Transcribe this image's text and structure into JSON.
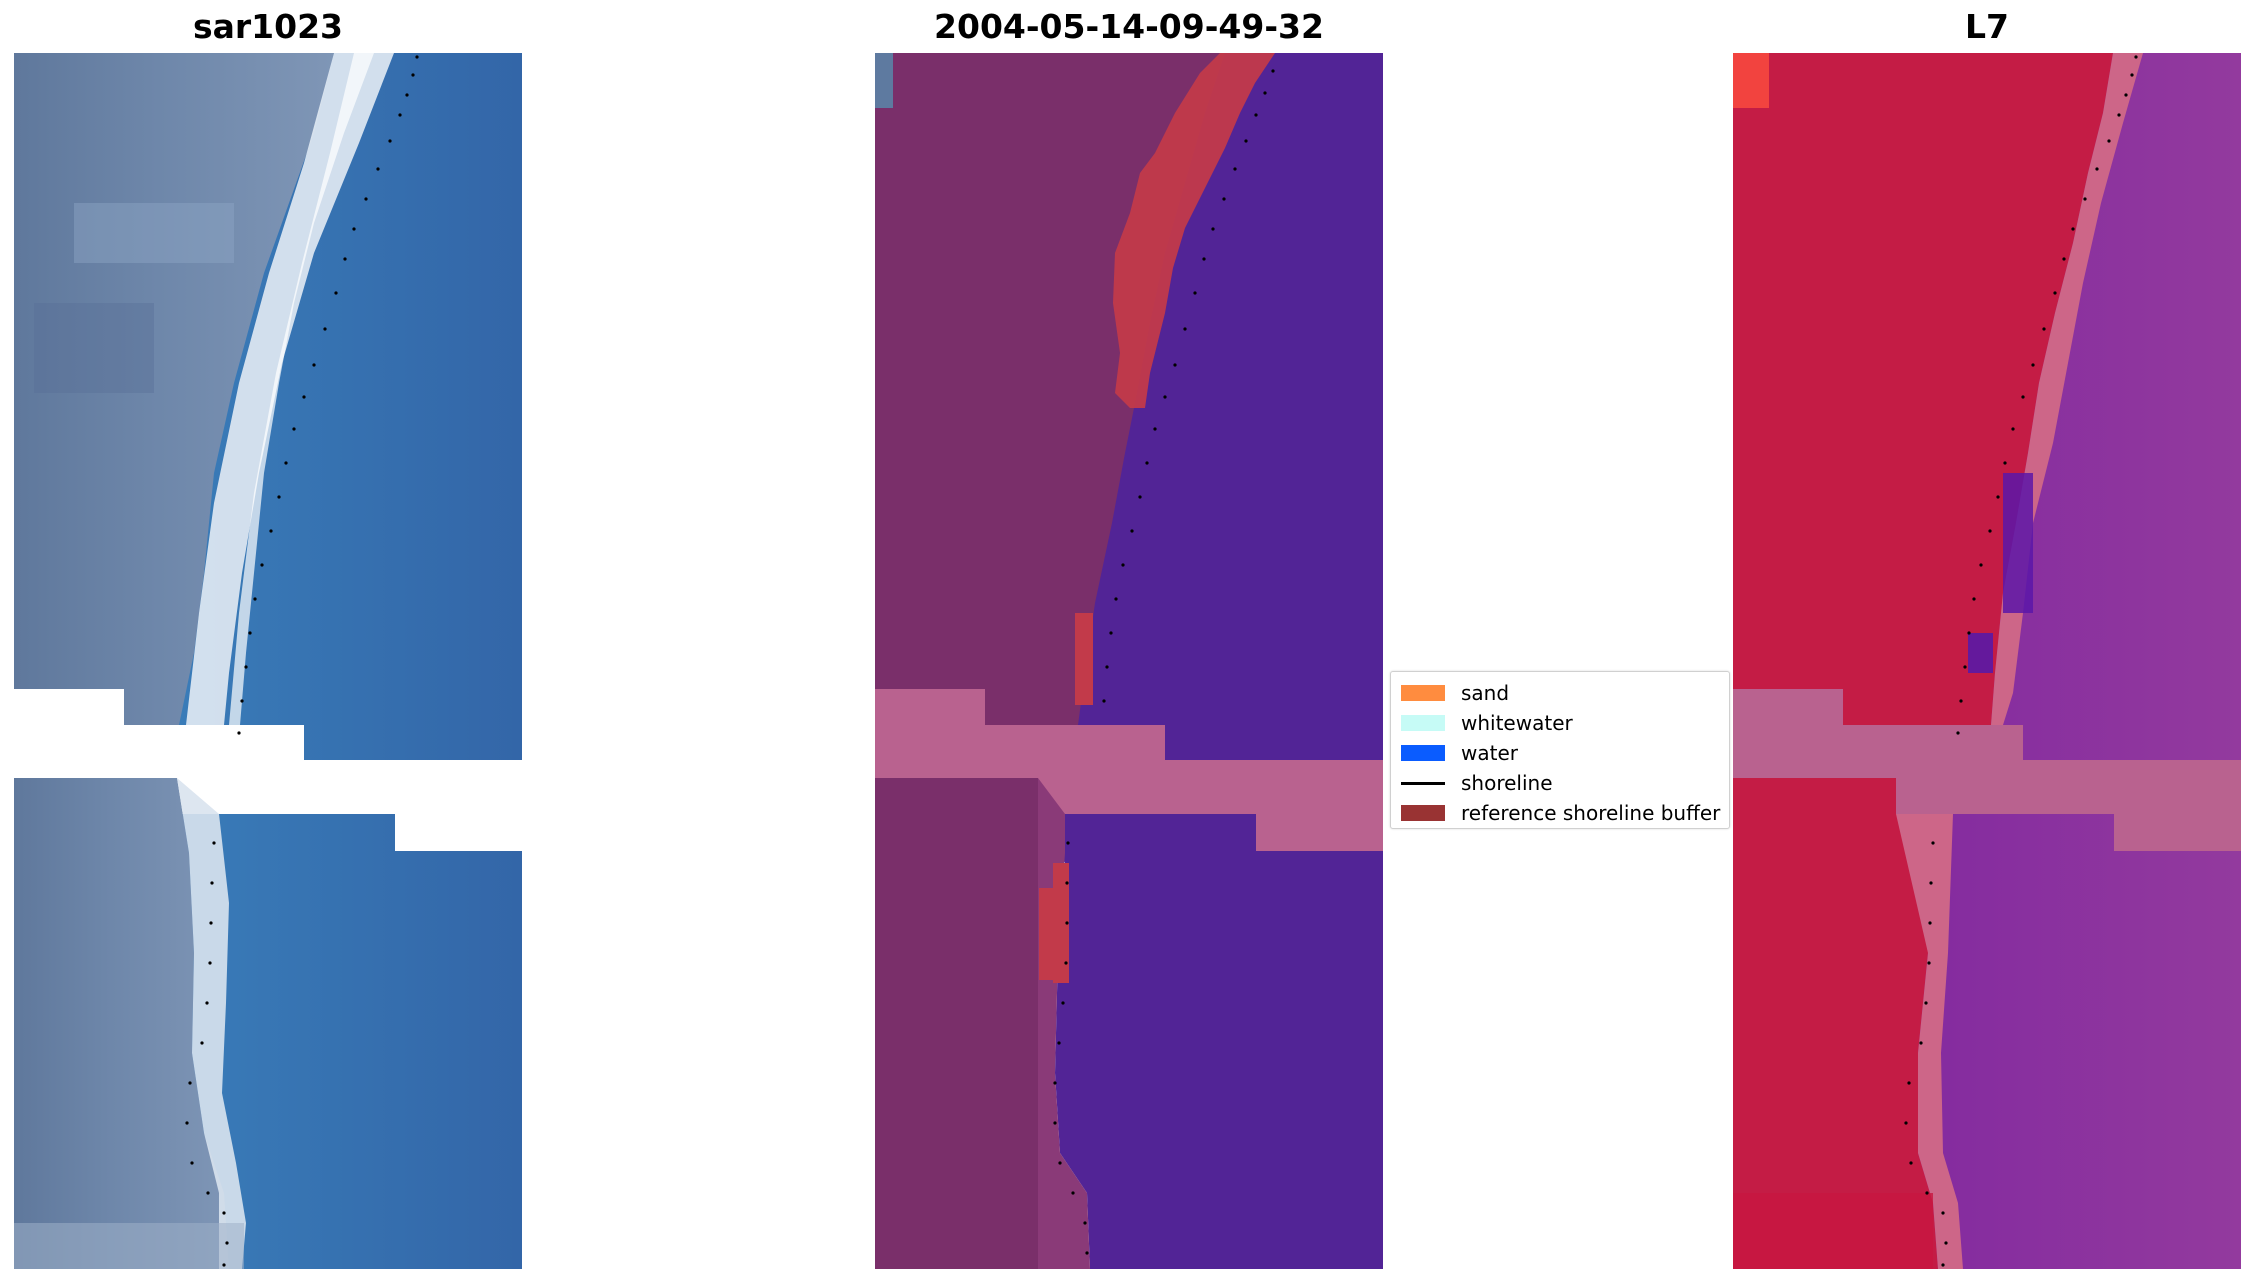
{
  "panels": [
    {
      "title": "sar1023"
    },
    {
      "title": "2004-05-14-09-49-32"
    },
    {
      "title": "L7"
    }
  ],
  "legend": {
    "items": [
      {
        "label": "sand",
        "color": "#ff8c3f",
        "kind": "patch"
      },
      {
        "label": "whitewater",
        "color": "#c6fbf6",
        "kind": "patch"
      },
      {
        "label": "water",
        "color": "#0a5cff",
        "kind": "patch"
      },
      {
        "label": "shoreline",
        "color": "#000000",
        "kind": "line"
      },
      {
        "label": "reference shoreline buffer",
        "color": "#993333",
        "kind": "patch"
      }
    ]
  },
  "colors": {
    "rgb_land": "#5f7aa0",
    "rgb_sea": "#3a78b8",
    "rgb_beach": "#e4ecf4",
    "class_land": "#7a2f6a",
    "class_water": "#522496",
    "class_buffer_overlap": "#c23a4a",
    "class_nodata": "#b9628f",
    "ir_land": "#c41c45",
    "ir_sea": "#8a2a9c",
    "ir_nodata": "#b9628f"
  }
}
